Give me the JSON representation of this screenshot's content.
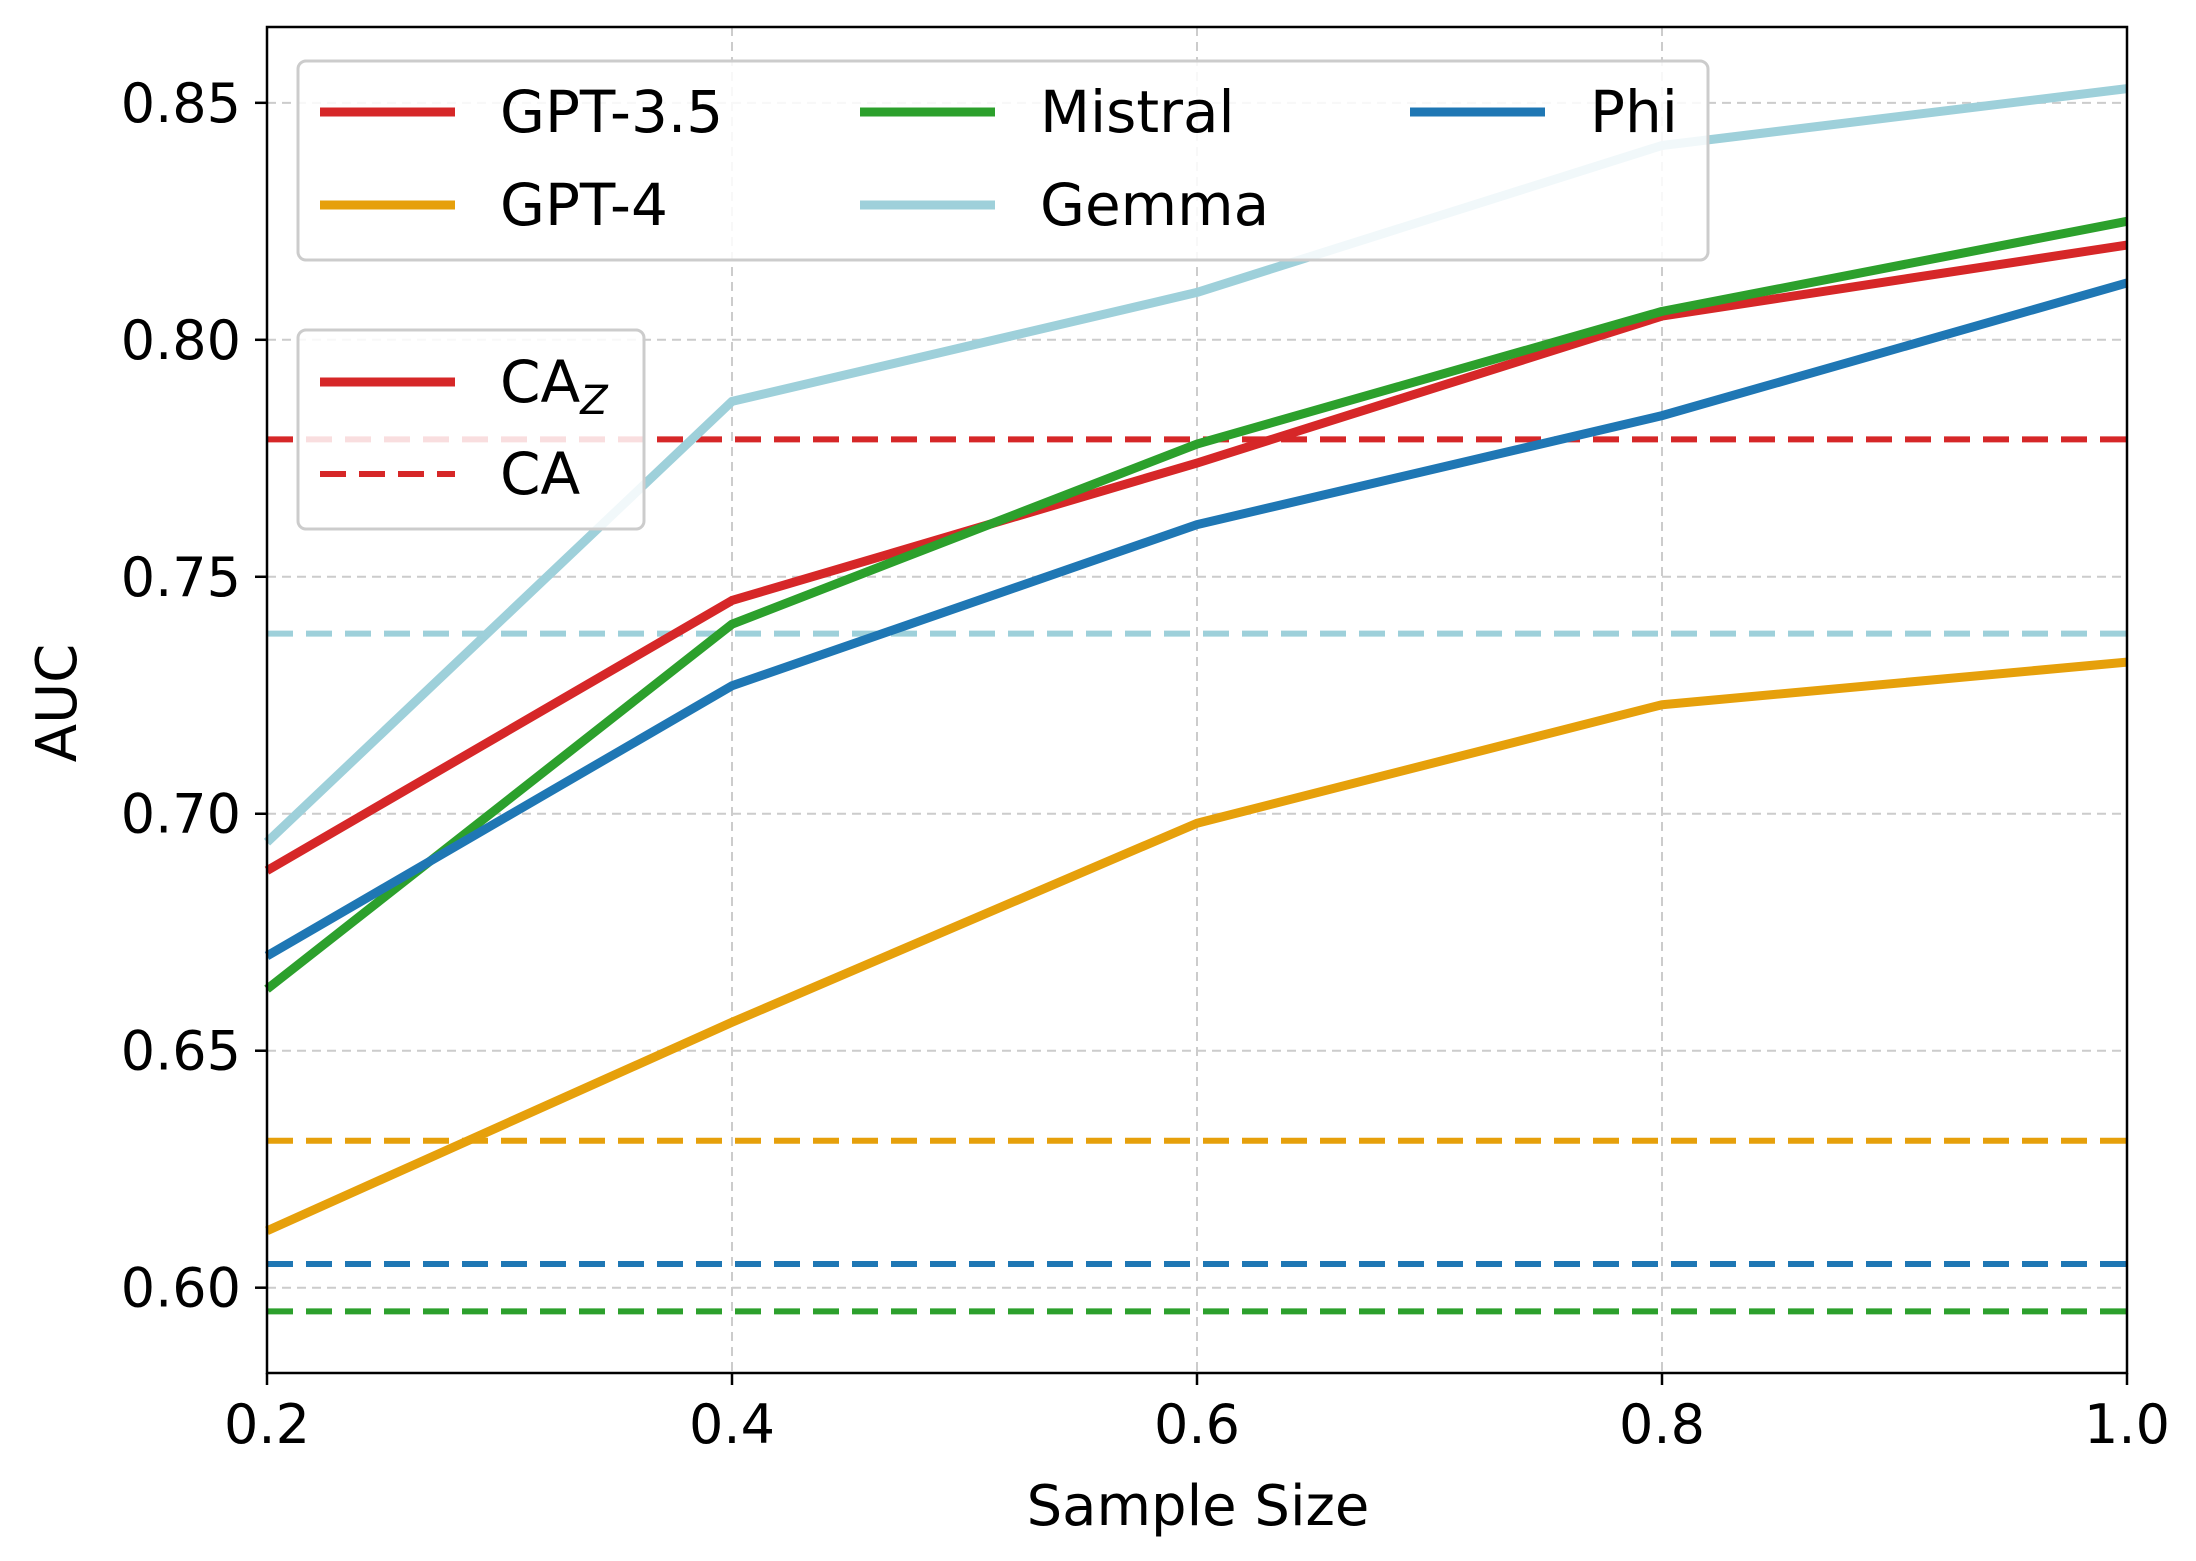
{
  "chart_data": {
    "type": "line",
    "title": "",
    "xlabel": "Sample Size",
    "ylabel": "AUC",
    "xlim": [
      0.2,
      1.0
    ],
    "ylim": [
      0.582,
      0.866
    ],
    "grid": true,
    "x": [
      0.2,
      0.4,
      0.6,
      0.8,
      1.0
    ],
    "x_ticks": [
      {
        "value": 0.2,
        "label": "0.2"
      },
      {
        "value": 0.4,
        "label": "0.4"
      },
      {
        "value": 0.6,
        "label": "0.6"
      },
      {
        "value": 0.8,
        "label": "0.8"
      },
      {
        "value": 1.0,
        "label": "1.0"
      }
    ],
    "y_ticks": [
      {
        "value": 0.6,
        "label": "0.60"
      },
      {
        "value": 0.65,
        "label": "0.65"
      },
      {
        "value": 0.7,
        "label": "0.70"
      },
      {
        "value": 0.75,
        "label": "0.75"
      },
      {
        "value": 0.8,
        "label": "0.80"
      },
      {
        "value": 0.85,
        "label": "0.85"
      }
    ],
    "series": [
      {
        "name": "GPT-3.5",
        "color": "#d62728",
        "values": [
          0.688,
          0.745,
          0.774,
          0.805,
          0.82
        ],
        "baseline": 0.779
      },
      {
        "name": "GPT-4",
        "color": "#e6a00b",
        "values": [
          0.612,
          0.656,
          0.698,
          0.723,
          0.732
        ],
        "baseline": 0.631
      },
      {
        "name": "Mistral",
        "color": "#2ca02c",
        "values": [
          0.663,
          0.74,
          0.778,
          0.806,
          0.825
        ],
        "baseline": 0.595
      },
      {
        "name": "Gemma",
        "color": "#9ed0da",
        "values": [
          0.694,
          0.787,
          0.81,
          0.841,
          0.853
        ],
        "baseline": 0.738
      },
      {
        "name": "Phi",
        "color": "#1f77b4",
        "values": [
          0.67,
          0.727,
          0.761,
          0.784,
          0.812
        ],
        "baseline": 0.605
      }
    ],
    "style_legend": {
      "solid": {
        "label": "CA",
        "subscript": "Z",
        "color": "#d62728"
      },
      "dashed": {
        "label": "CA",
        "color": "#d62728"
      }
    },
    "legend_placement": "top-left"
  }
}
